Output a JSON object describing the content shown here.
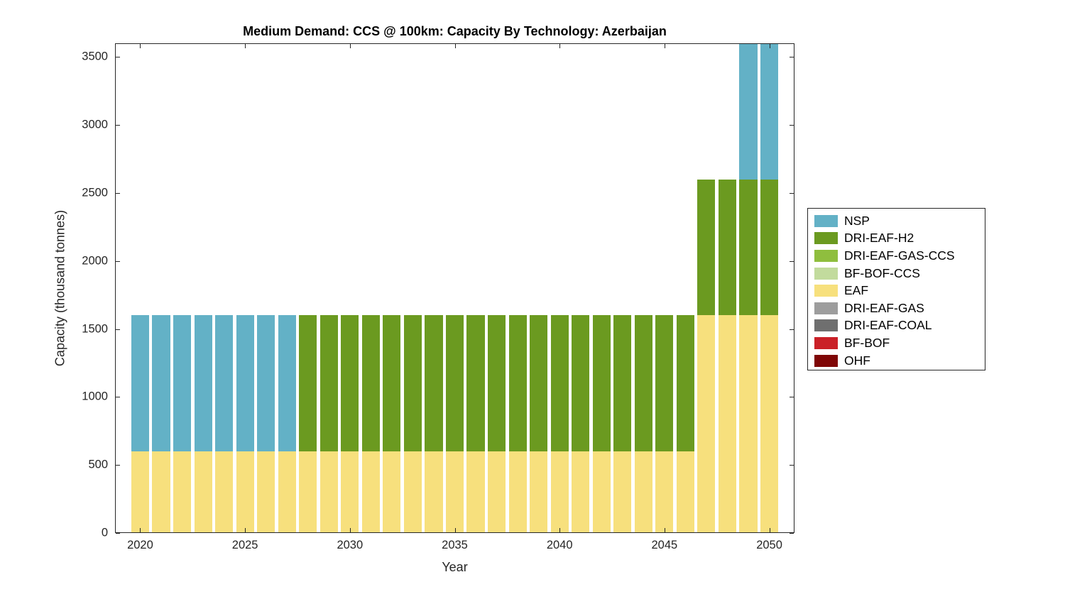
{
  "figure": {
    "title": "Medium Demand: CCS @ 100km: Capacity By Technology: Azerbaijan",
    "xlabel": "Year",
    "ylabel": "Capacity (thousand tonnes)"
  },
  "chart_data": {
    "type": "bar",
    "stacked": true,
    "title": "Medium Demand: CCS @ 100km: Capacity By Technology: Azerbaijan",
    "xlabel": "Year",
    "ylabel": "Capacity (thousand tonnes)",
    "ylim": [
      0,
      3600
    ],
    "xlim": [
      2018.8,
      2051.2
    ],
    "yticks": [
      0,
      500,
      1000,
      1500,
      2000,
      2500,
      3000,
      3500
    ],
    "xticks": [
      2020,
      2025,
      2030,
      2035,
      2040,
      2045,
      2050
    ],
    "grid": false,
    "legend_position": "right-outside",
    "bar_width_years": 0.85,
    "x": [
      2020,
      2021,
      2022,
      2023,
      2024,
      2025,
      2026,
      2027,
      2028,
      2029,
      2030,
      2031,
      2032,
      2033,
      2034,
      2035,
      2036,
      2037,
      2038,
      2039,
      2040,
      2041,
      2042,
      2043,
      2044,
      2045,
      2046,
      2047,
      2048,
      2049,
      2050
    ],
    "series": [
      {
        "name": "EAF",
        "color": "#F7E07D",
        "values": [
          600,
          600,
          600,
          600,
          600,
          600,
          600,
          600,
          600,
          600,
          600,
          600,
          600,
          600,
          600,
          600,
          600,
          600,
          600,
          600,
          600,
          600,
          600,
          600,
          600,
          600,
          600,
          1600,
          1600,
          1600,
          1600
        ]
      },
      {
        "name": "DRI-EAF-H2",
        "color": "#6B9A20",
        "values": [
          0,
          0,
          0,
          0,
          0,
          0,
          0,
          0,
          1000,
          1000,
          1000,
          1000,
          1000,
          1000,
          1000,
          1000,
          1000,
          1000,
          1000,
          1000,
          1000,
          1000,
          1000,
          1000,
          1000,
          1000,
          1000,
          1000,
          1000,
          1000,
          1000
        ]
      },
      {
        "name": "NSP",
        "color": "#63B1C6",
        "values": [
          1000,
          1000,
          1000,
          1000,
          1000,
          1000,
          1000,
          1000,
          0,
          0,
          0,
          0,
          0,
          0,
          0,
          0,
          0,
          0,
          0,
          0,
          0,
          0,
          0,
          0,
          0,
          0,
          0,
          0,
          0,
          1000,
          1000
        ]
      }
    ],
    "legend": [
      {
        "label": "NSP",
        "color": "#63B1C6"
      },
      {
        "label": "DRI-EAF-H2",
        "color": "#6B9A20"
      },
      {
        "label": "DRI-EAF-GAS-CCS",
        "color": "#8FBE3E"
      },
      {
        "label": "BF-BOF-CCS",
        "color": "#C2DB9D"
      },
      {
        "label": "EAF",
        "color": "#F7E07D"
      },
      {
        "label": "DRI-EAF-GAS",
        "color": "#9D9D9D"
      },
      {
        "label": "DRI-EAF-COAL",
        "color": "#6F6F6F"
      },
      {
        "label": "BF-BOF",
        "color": "#CA2027"
      },
      {
        "label": "OHF",
        "color": "#7F0606"
      }
    ]
  }
}
